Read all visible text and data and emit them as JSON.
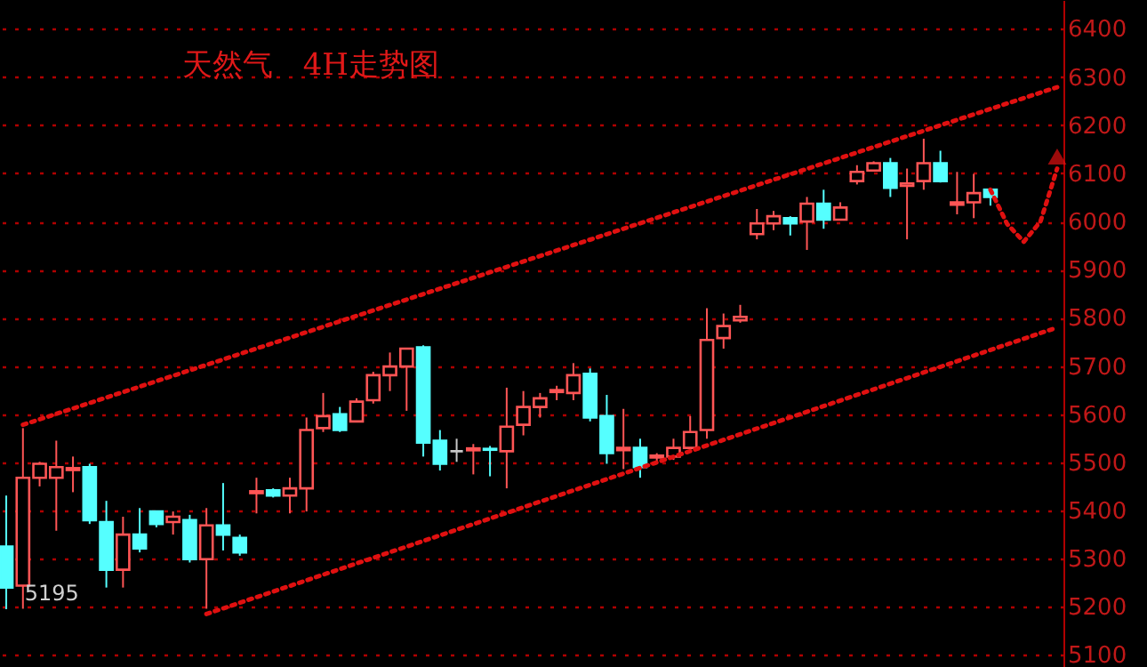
{
  "chart_data": {
    "type": "candlestick",
    "title": "天然气　4H走势图",
    "categories": [
      null,
      null,
      null,
      null,
      null,
      null,
      null,
      null,
      null,
      null,
      null,
      null,
      null,
      null,
      null,
      null,
      null,
      null,
      null,
      null,
      null,
      null,
      null,
      null,
      null,
      null,
      null,
      null,
      null,
      null,
      null,
      null,
      null,
      null,
      null,
      null,
      null,
      null,
      null,
      null,
      null,
      null,
      null,
      null,
      null,
      null,
      null,
      null,
      null,
      null,
      null,
      null,
      null,
      null,
      null,
      null,
      null,
      null,
      null,
      null,
      null,
      null,
      null,
      null
    ],
    "ohlc": [
      [
        5325,
        5431,
        5195,
        5240
      ],
      [
        5244,
        5571,
        5196,
        5468
      ],
      [
        5468,
        5501,
        5450,
        5497
      ],
      [
        5468,
        5545,
        5358,
        5490
      ],
      [
        5484,
        5512,
        5438,
        5488
      ],
      [
        5490,
        5497,
        5372,
        5380
      ],
      [
        5376,
        5420,
        5240,
        5277
      ],
      [
        5277,
        5387,
        5240,
        5350
      ],
      [
        5350,
        5405,
        5313,
        5321
      ],
      [
        5398,
        5398,
        5365,
        5372
      ],
      [
        5376,
        5398,
        5350,
        5387
      ],
      [
        5380,
        5391,
        5292,
        5299
      ],
      [
        5299,
        5405,
        5196,
        5369
      ],
      [
        5369,
        5457,
        5317,
        5350
      ],
      [
        5343,
        5350,
        5306,
        5313
      ],
      [
        5436,
        5468,
        5394,
        5440
      ],
      [
        5442,
        5446,
        5427,
        5431
      ],
      [
        5431,
        5468,
        5394,
        5446
      ],
      [
        5446,
        5593,
        5398,
        5567
      ],
      [
        5571,
        5644,
        5563,
        5596
      ],
      [
        5600,
        5615,
        5563,
        5567
      ],
      [
        5585,
        5633,
        5585,
        5626
      ],
      [
        5629,
        5688,
        5622,
        5681
      ],
      [
        5681,
        5728,
        5648,
        5699
      ],
      [
        5699,
        5736,
        5607,
        5736
      ],
      [
        5739,
        5743,
        5512,
        5541
      ],
      [
        5545,
        5567,
        5483,
        5497
      ],
      [
        5523,
        5549,
        5501,
        5523
      ],
      [
        5525,
        5538,
        5475,
        5529
      ],
      [
        5528,
        5534,
        5471,
        5526
      ],
      [
        5523,
        5655,
        5446,
        5574
      ],
      [
        5578,
        5648,
        5556,
        5615
      ],
      [
        5615,
        5644,
        5593,
        5633
      ],
      [
        5646,
        5659,
        5629,
        5650
      ],
      [
        5644,
        5706,
        5629,
        5681
      ],
      [
        5684,
        5695,
        5585,
        5593
      ],
      [
        5596,
        5640,
        5497,
        5519
      ],
      [
        5525,
        5611,
        5486,
        5530
      ],
      [
        5530,
        5549,
        5468,
        5490
      ],
      [
        5510,
        5519,
        5497,
        5514
      ],
      [
        5512,
        5549,
        5505,
        5530
      ],
      [
        5530,
        5596,
        5523,
        5563
      ],
      [
        5567,
        5820,
        5549,
        5754
      ],
      [
        5758,
        5809,
        5736,
        5783
      ],
      [
        5795,
        5827,
        5790,
        5802
      ],
      [
        5974,
        6026,
        5963,
        5996
      ],
      [
        5996,
        6022,
        5982,
        6011
      ],
      [
        6007,
        6011,
        5971,
        5996
      ],
      [
        6000,
        6051,
        5941,
        6037
      ],
      [
        6037,
        6066,
        5985,
        6004
      ],
      [
        6004,
        6040,
        6004,
        6029
      ],
      [
        6084,
        6117,
        6077,
        6103
      ],
      [
        6106,
        6125,
        6106,
        6121
      ],
      [
        6121,
        6132,
        6051,
        6070
      ],
      [
        6074,
        6110,
        5963,
        6079
      ],
      [
        6084,
        6172,
        6066,
        6121
      ],
      [
        6121,
        6147,
        6081,
        6084
      ],
      [
        6035,
        6103,
        6015,
        6040
      ],
      [
        6040,
        6099,
        6007,
        6059
      ],
      [
        6066,
        6070,
        6033,
        6051
      ],
      null,
      null,
      null,
      null
    ],
    "colors": [
      "#55ffff",
      "#ff5555",
      "#ff5555",
      "#ff5555",
      "#ff5555",
      "#55ffff",
      "#55ffff",
      "#ff5555",
      "#55ffff",
      "#55ffff",
      "#ff5555",
      "#55ffff",
      "#ff5555",
      "#55ffff",
      "#55ffff",
      "#ff5555",
      "#55ffff",
      "#ff5555",
      "#ff5555",
      "#ff5555",
      "#55ffff",
      "#ff5555",
      "#ff5555",
      "#ff5555",
      "#ff5555",
      "#55ffff",
      "#55ffff",
      "#c8c8c8",
      "#ff5555",
      "#55ffff",
      "#ff5555",
      "#ff5555",
      "#ff5555",
      "#ff5555",
      "#ff5555",
      "#55ffff",
      "#55ffff",
      "#ff5555",
      "#55ffff",
      "#ff5555",
      "#ff5555",
      "#ff5555",
      "#ff5555",
      "#ff5555",
      "#ff5555",
      "#ff5555",
      "#ff5555",
      "#55ffff",
      "#ff5555",
      "#55ffff",
      "#ff5555",
      "#ff5555",
      "#ff5555",
      "#55ffff",
      "#ff5555",
      "#ff5555",
      "#55ffff",
      "#ff5555",
      "#ff5555",
      "#55ffff",
      null,
      null,
      null,
      null
    ],
    "series": [
      {
        "type": "line",
        "color": "#e01010",
        "line_style": "dotted",
        "values": [
          null,
          5578,
          null,
          null,
          null,
          null,
          null,
          null,
          null,
          null,
          null,
          null,
          null,
          null,
          null,
          null,
          null,
          null,
          null,
          null,
          null,
          null,
          null,
          null,
          null,
          null,
          null,
          null,
          null,
          null,
          null,
          null,
          null,
          null,
          null,
          null,
          null,
          null,
          null,
          null,
          null,
          null,
          null,
          null,
          null,
          null,
          null,
          null,
          null,
          null,
          null,
          null,
          null,
          null,
          null,
          null,
          null,
          null,
          null,
          null,
          null,
          null,
          null,
          6279
        ]
      },
      {
        "type": "line",
        "color": "#e01010",
        "line_style": "dotted",
        "values": [
          null,
          null,
          null,
          null,
          null,
          null,
          null,
          null,
          null,
          null,
          null,
          null,
          5185,
          null,
          null,
          null,
          null,
          null,
          null,
          null,
          null,
          null,
          null,
          null,
          null,
          null,
          null,
          null,
          null,
          null,
          null,
          null,
          null,
          null,
          null,
          null,
          null,
          null,
          null,
          null,
          null,
          null,
          null,
          null,
          null,
          null,
          null,
          null,
          null,
          null,
          null,
          null,
          null,
          null,
          null,
          null,
          null,
          null,
          null,
          null,
          null,
          null,
          null,
          5780
        ]
      },
      {
        "type": "line",
        "color": "#e01010",
        "line_style": "dotted",
        "values": [
          null,
          null,
          null,
          null,
          null,
          null,
          null,
          null,
          null,
          null,
          null,
          null,
          null,
          null,
          null,
          null,
          null,
          null,
          null,
          null,
          null,
          null,
          null,
          null,
          null,
          null,
          null,
          null,
          null,
          null,
          null,
          null,
          null,
          null,
          null,
          null,
          null,
          null,
          null,
          null,
          null,
          null,
          null,
          null,
          null,
          null,
          null,
          null,
          null,
          null,
          null,
          null,
          null,
          null,
          null,
          null,
          null,
          null,
          null,
          6066,
          5995,
          5958,
          6000,
          6110
        ]
      },
      {
        "type": "scatter",
        "color": "#e01010",
        "marker": "triangle",
        "values": [
          null,
          null,
          null,
          null,
          null,
          null,
          null,
          null,
          null,
          null,
          null,
          null,
          null,
          null,
          null,
          null,
          null,
          null,
          null,
          null,
          null,
          null,
          null,
          null,
          null,
          null,
          null,
          null,
          null,
          null,
          null,
          null,
          null,
          null,
          null,
          null,
          null,
          null,
          null,
          null,
          null,
          null,
          null,
          null,
          null,
          null,
          null,
          null,
          null,
          null,
          null,
          null,
          null,
          null,
          null,
          null,
          null,
          null,
          null,
          null,
          null,
          null,
          null,
          6135
        ]
      }
    ],
    "annotations": [
      "5195"
    ],
    "ylim": [
      5075,
      6460
    ],
    "yticks": [
      5100,
      5200,
      5300,
      5400,
      5500,
      5600,
      5700,
      5800,
      5900,
      6000,
      6100,
      6200,
      6300,
      6400
    ],
    "grid": "y"
  }
}
